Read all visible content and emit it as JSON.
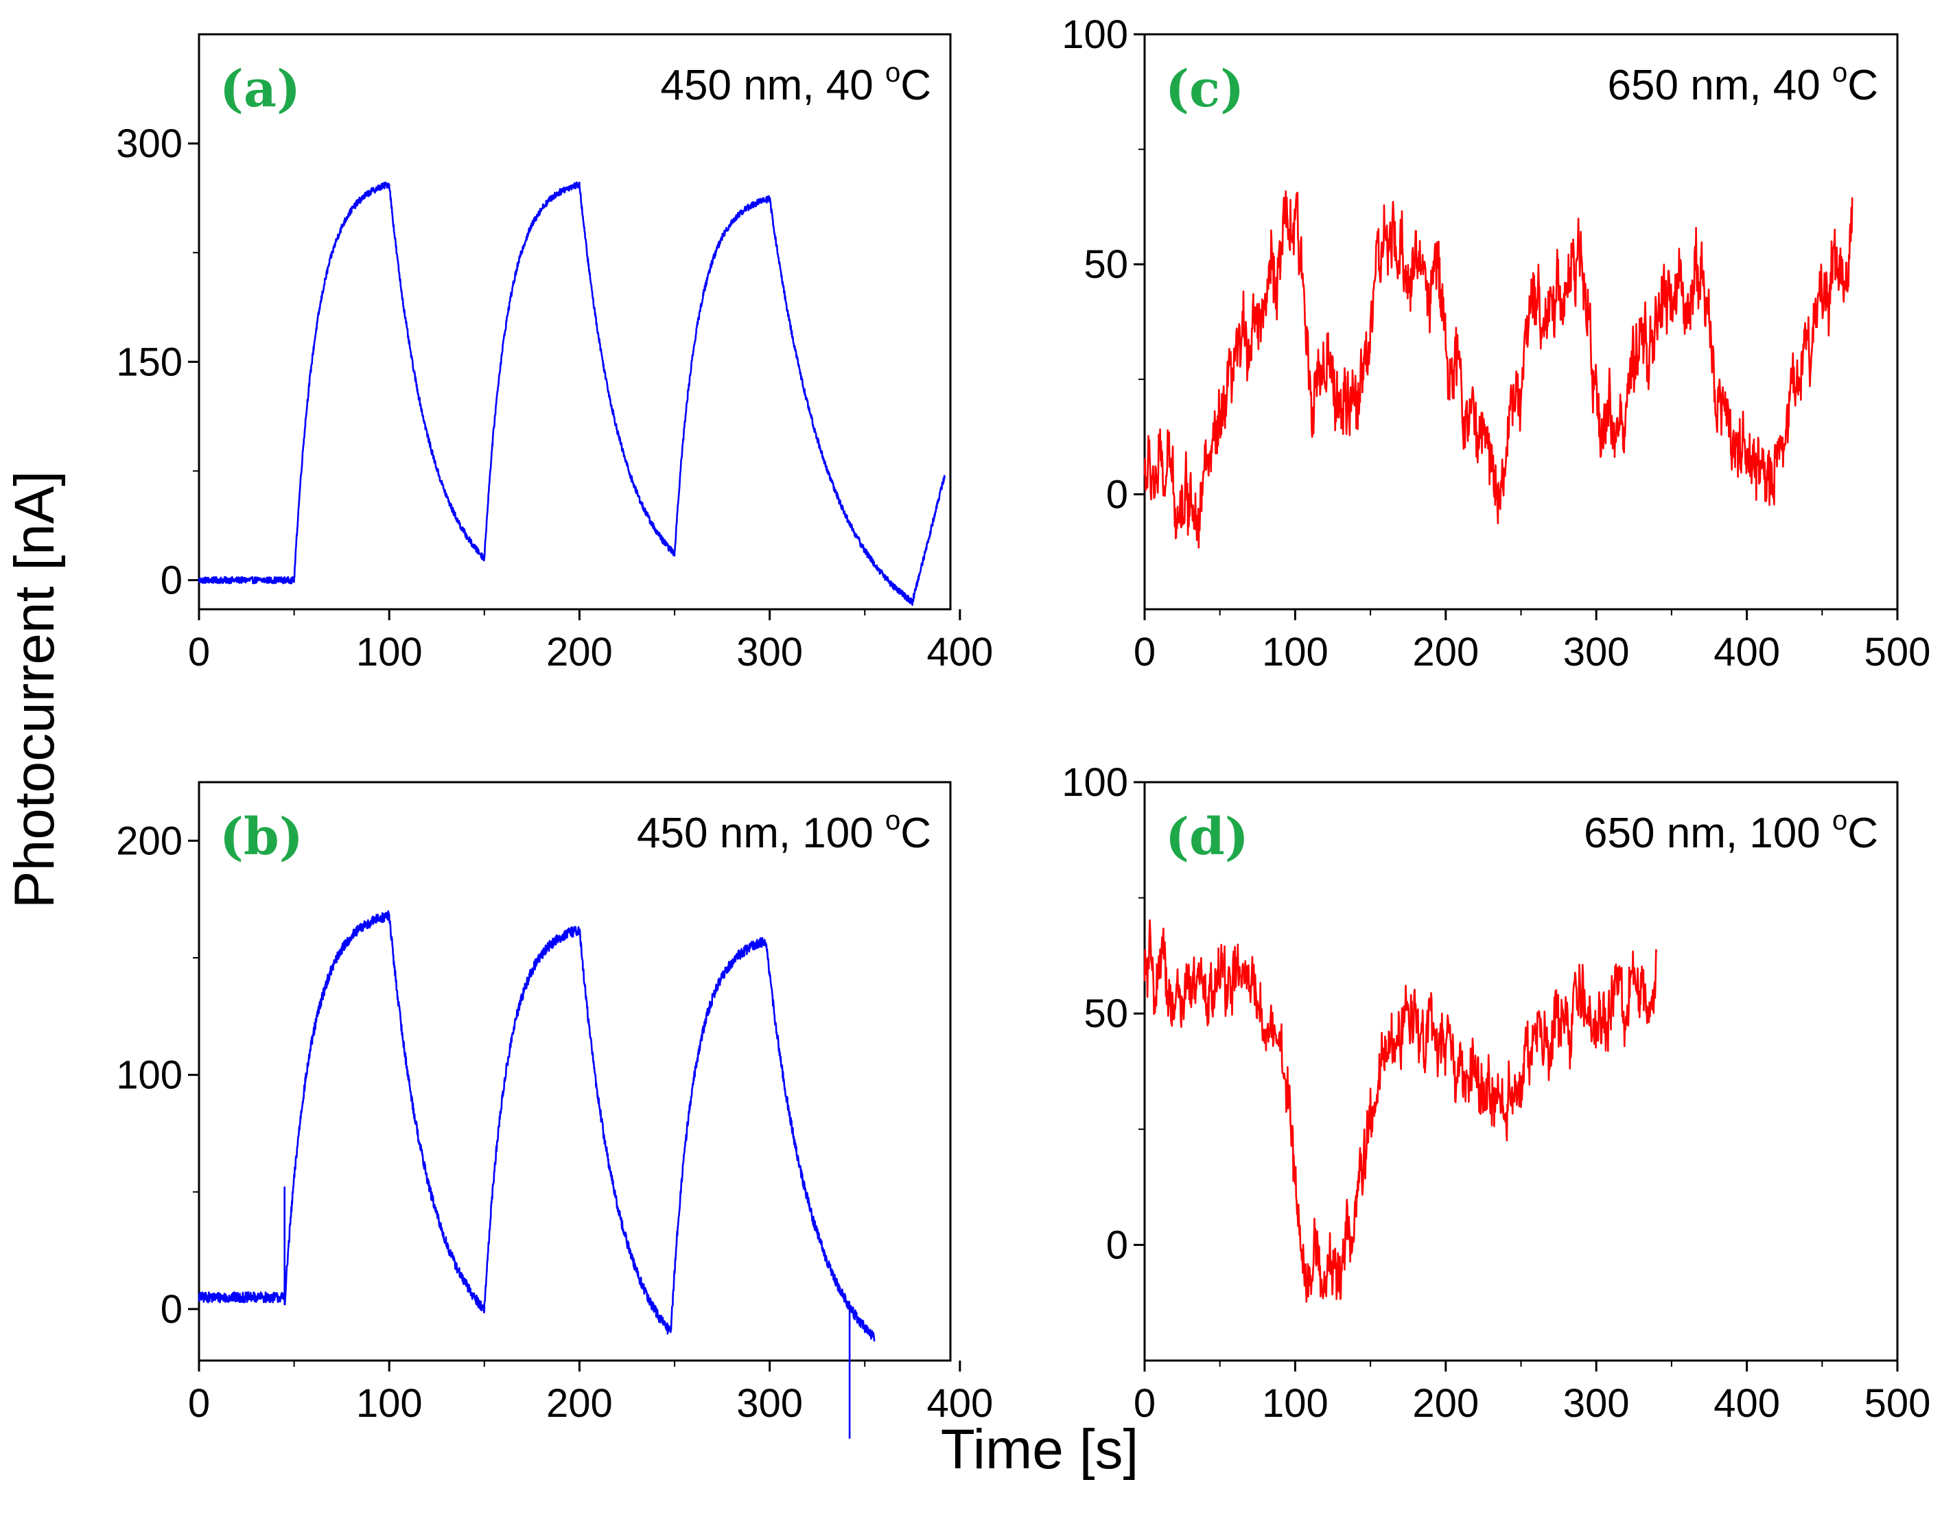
{
  "figure": {
    "ylabel": "Photocurrent [nA]",
    "xlabel": "Time [s]"
  },
  "chart_data": [
    {
      "id": "a",
      "type": "line",
      "label": "(a)",
      "annotation_main": "450 nm, 40 ",
      "annotation_deg": "o",
      "annotation_unit": "C",
      "color": "#0000ff",
      "xlim": [
        0,
        395
      ],
      "ylim": [
        -20,
        375
      ],
      "xticks": [
        "0",
        "100",
        "200",
        "300",
        "400"
      ],
      "xtick_values": [
        0,
        100,
        200,
        300,
        400
      ],
      "yticks": [
        "0",
        "150",
        "300"
      ],
      "ytick_values": [
        0,
        150,
        300
      ],
      "yminor": [
        75,
        225
      ],
      "noise": 2.2,
      "segments": [
        {
          "kind": "flat",
          "t0": 0,
          "t1": 50,
          "v0": 0
        },
        {
          "kind": "rise",
          "t0": 50,
          "t1": 100,
          "v0": 0,
          "vmax": 272
        },
        {
          "kind": "decay",
          "t0": 100,
          "t1": 150,
          "v0": 272,
          "vend": 15
        },
        {
          "kind": "rise",
          "t0": 150,
          "t1": 200,
          "v0": 15,
          "vmax": 272
        },
        {
          "kind": "decay",
          "t0": 200,
          "t1": 250,
          "v0": 272,
          "vend": 18
        },
        {
          "kind": "rise",
          "t0": 250,
          "t1": 300,
          "v0": 18,
          "vmax": 262
        },
        {
          "kind": "decay",
          "t0": 300,
          "t1": 375,
          "v0": 262,
          "vend": -15
        },
        {
          "kind": "linear",
          "t0": 375,
          "t1": 392,
          "v0": -15,
          "vend": 72
        }
      ]
    },
    {
      "id": "b",
      "type": "line",
      "label": "(b)",
      "annotation_main": "450 nm, 100 ",
      "annotation_deg": "o",
      "annotation_unit": "C",
      "color": "#0000ff",
      "xlim": [
        0,
        395
      ],
      "ylim": [
        -22,
        225
      ],
      "xticks": [
        "0",
        "100",
        "200",
        "300",
        "400"
      ],
      "xtick_values": [
        0,
        100,
        200,
        300,
        400
      ],
      "yticks": [
        "0",
        "100",
        "200"
      ],
      "ytick_values": [
        0,
        100,
        200
      ],
      "yminor": [
        50,
        150
      ],
      "noise": 2.2,
      "segments": [
        {
          "kind": "flat",
          "t0": 0,
          "t1": 45,
          "v0": 5
        },
        {
          "kind": "rise",
          "t0": 45,
          "t1": 100,
          "v0": 2,
          "vmax": 168
        },
        {
          "kind": "decay",
          "t0": 100,
          "t1": 150,
          "v0": 168,
          "vend": 0
        },
        {
          "kind": "rise",
          "t0": 150,
          "t1": 200,
          "v0": 0,
          "vmax": 162
        },
        {
          "kind": "decay",
          "t0": 200,
          "t1": 248,
          "v0": 162,
          "vend": -10
        },
        {
          "kind": "rise",
          "t0": 248,
          "t1": 298,
          "v0": -10,
          "vmax": 157
        },
        {
          "kind": "decay",
          "t0": 298,
          "t1": 355,
          "v0": 157,
          "vend": -12
        }
      ],
      "spikes": [
        {
          "t": 45,
          "v": 52
        },
        {
          "t": 342,
          "v": -55
        }
      ]
    },
    {
      "id": "c",
      "type": "line",
      "label": "(c)",
      "annotation_main": "650 nm, 40 ",
      "annotation_deg": "o",
      "annotation_unit": "C",
      "color": "#ff0000",
      "xlim": [
        0,
        500
      ],
      "ylim": [
        -25,
        100
      ],
      "xticks": [
        "0",
        "100",
        "200",
        "300",
        "400",
        "500"
      ],
      "xtick_values": [
        0,
        100,
        200,
        300,
        400,
        500
      ],
      "yticks": [
        "0",
        "50",
        "100"
      ],
      "ytick_values": [
        0,
        50,
        100
      ],
      "yminor": [
        25,
        75
      ],
      "noise": 9,
      "trend_x": [
        0,
        30,
        50,
        70,
        100,
        110,
        140,
        155,
        195,
        205,
        235,
        260,
        290,
        300,
        320,
        340,
        370,
        380,
        410,
        420,
        450,
        470
      ],
      "trend_y": [
        5,
        0,
        10,
        38,
        58,
        28,
        16,
        52,
        48,
        25,
        4,
        40,
        50,
        18,
        18,
        38,
        48,
        22,
        0,
        10,
        45,
        55
      ]
    },
    {
      "id": "d",
      "type": "line",
      "label": "(d)",
      "annotation_main": "650 nm, 100 ",
      "annotation_deg": "o",
      "annotation_unit": "C",
      "color": "#ff0000",
      "xlim": [
        0,
        500
      ],
      "ylim": [
        -25,
        100
      ],
      "xticks": [
        "0",
        "100",
        "200",
        "300",
        "400",
        "500"
      ],
      "xtick_values": [
        0,
        100,
        200,
        300,
        400,
        500
      ],
      "yticks": [
        "0",
        "50",
        "100"
      ],
      "ytick_values": [
        0,
        50,
        100
      ],
      "yminor": [
        25,
        75
      ],
      "noise": 8,
      "trend_x": [
        0,
        30,
        60,
        90,
        105,
        120,
        135,
        160,
        180,
        200,
        230,
        260,
        290,
        320,
        340
      ],
      "trend_y": [
        58,
        52,
        58,
        45,
        0,
        -8,
        0,
        40,
        52,
        40,
        30,
        42,
        50,
        52,
        55
      ]
    }
  ]
}
